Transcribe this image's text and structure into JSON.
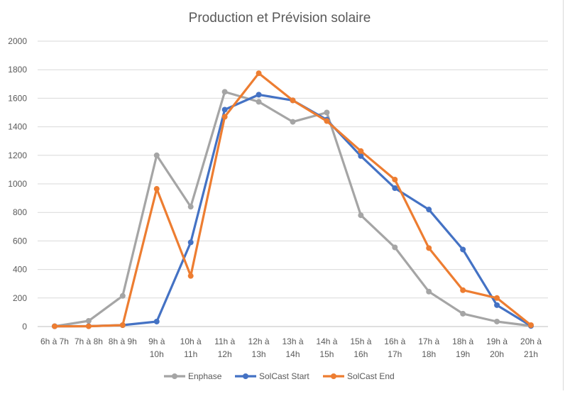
{
  "chart_data": {
    "type": "line",
    "title": "Production et Prévision solaire",
    "xlabel": "",
    "ylabel": "",
    "ylim": [
      0,
      2000
    ],
    "yticks": [
      0,
      200,
      400,
      600,
      800,
      1000,
      1200,
      1400,
      1600,
      1800,
      2000
    ],
    "grid": true,
    "legend_position": "bottom",
    "categories": [
      [
        "6h à 7h"
      ],
      [
        "7h à 8h"
      ],
      [
        "8h à 9h"
      ],
      [
        "9h à",
        "10h"
      ],
      [
        "10h à",
        "11h"
      ],
      [
        "11h à",
        "12h"
      ],
      [
        "12h à",
        "13h"
      ],
      [
        "13h à",
        "14h"
      ],
      [
        "14h à",
        "15h"
      ],
      [
        "15h à",
        "16h"
      ],
      [
        "16h à",
        "17h"
      ],
      [
        "17h à",
        "18h"
      ],
      [
        "18h à",
        "19h"
      ],
      [
        "19h à",
        "20h"
      ],
      [
        "20h à",
        "21h"
      ]
    ],
    "series": [
      {
        "name": "Enphase",
        "color": "#a5a5a5",
        "values": [
          2,
          40,
          215,
          1200,
          840,
          1645,
          1575,
          1435,
          1500,
          780,
          555,
          245,
          90,
          35,
          5
        ]
      },
      {
        "name": "SolCast Start",
        "color": "#4472c4",
        "values": [
          2,
          3,
          10,
          35,
          590,
          1520,
          1625,
          1585,
          1450,
          1195,
          970,
          820,
          540,
          150,
          5
        ]
      },
      {
        "name": "SolCast End",
        "color": "#ed7d31",
        "values": [
          2,
          2,
          10,
          965,
          355,
          1470,
          1775,
          1585,
          1440,
          1230,
          1030,
          550,
          255,
          200,
          10
        ]
      }
    ]
  }
}
